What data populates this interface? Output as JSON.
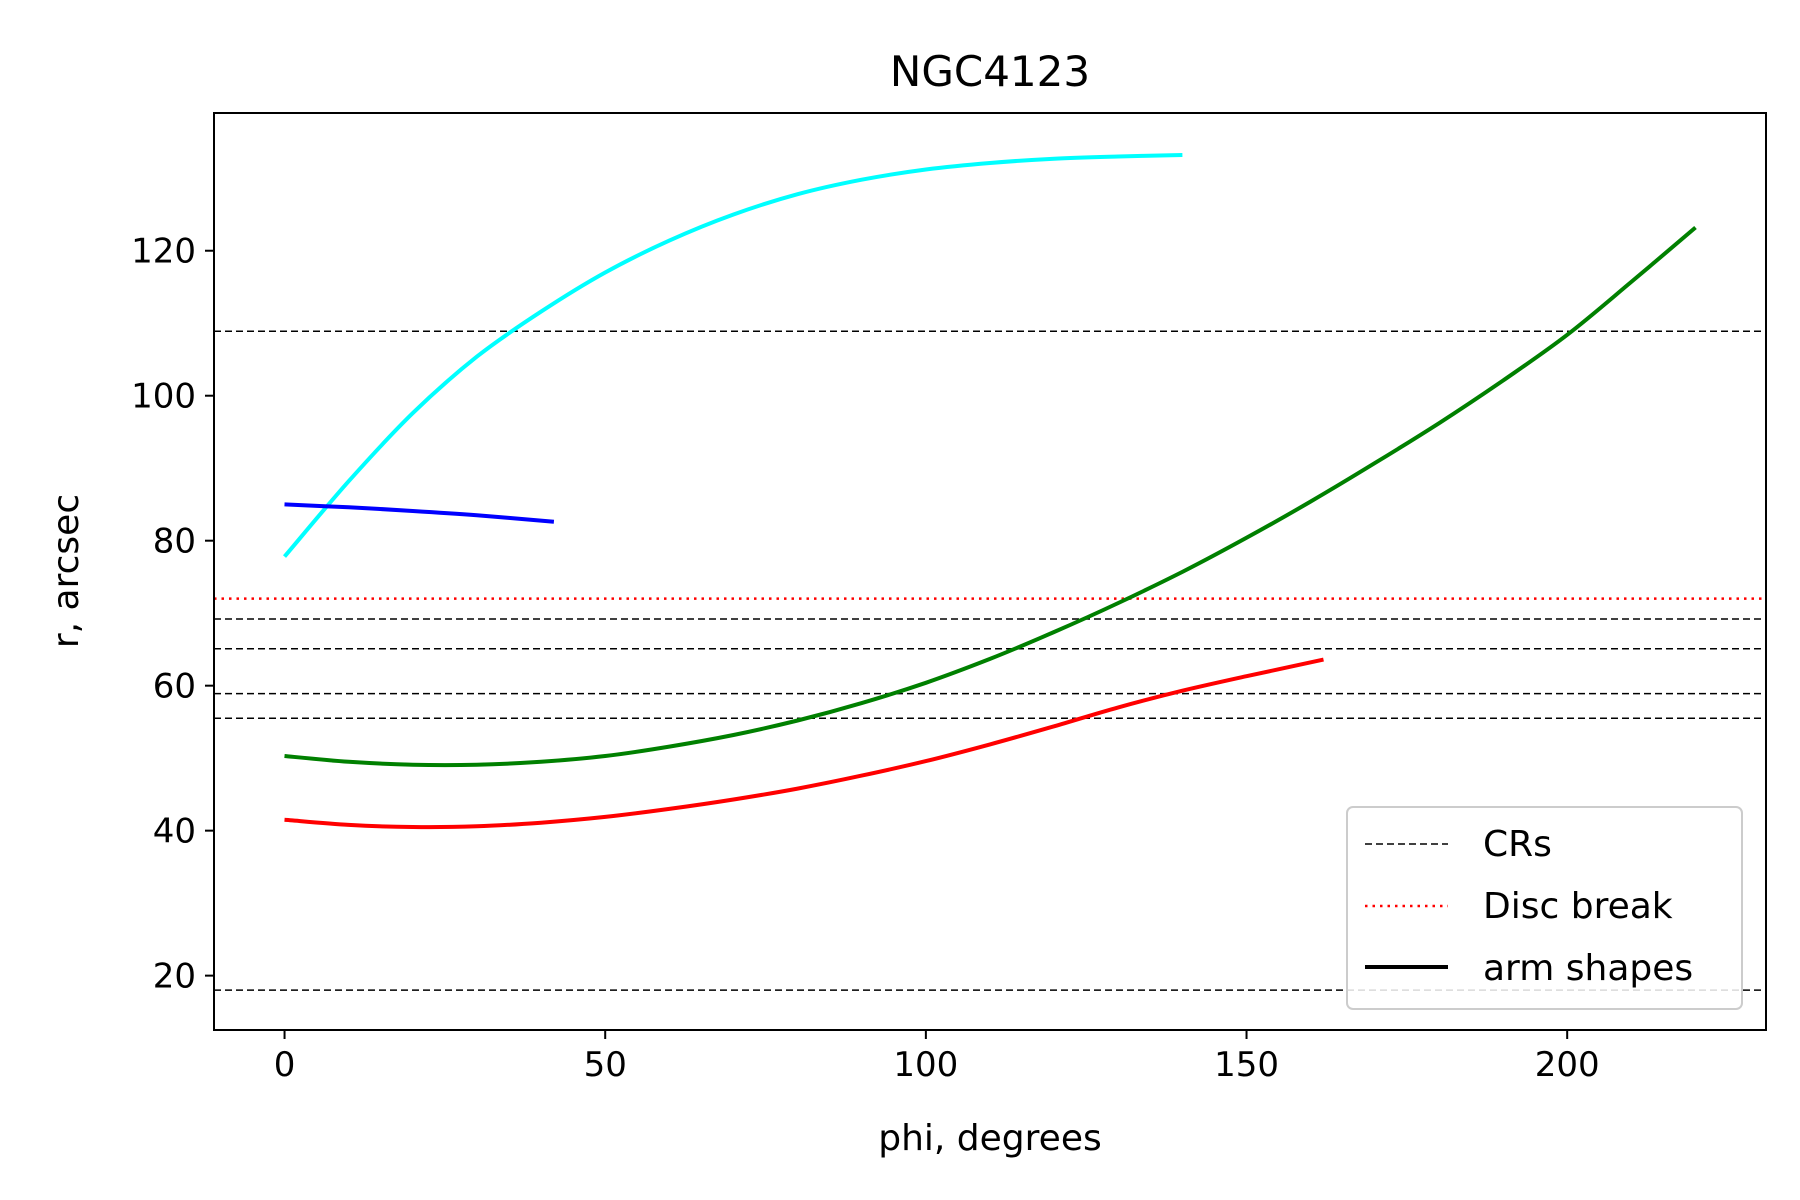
{
  "chart_data": {
    "type": "line",
    "title": "NGC4123",
    "xlabel": "phi, degrees",
    "ylabel": "r, arcsec",
    "xlim": [
      -11,
      231
    ],
    "ylim": [
      12.5,
      139
    ],
    "xticks": [
      0,
      50,
      100,
      150,
      200
    ],
    "yticks": [
      20,
      40,
      60,
      80,
      100,
      120
    ],
    "grid": false,
    "legend_position": "lower-right",
    "legend": [
      {
        "label": "CRs",
        "style": "dashed",
        "color": "#000000"
      },
      {
        "label": "Disc break",
        "style": "dotted",
        "color": "#ff0000"
      },
      {
        "label": "arm shapes",
        "style": "solid",
        "color": "#000000"
      }
    ],
    "hlines": [
      {
        "y": 18.0,
        "style": "dashed",
        "color": "#000000"
      },
      {
        "y": 55.5,
        "style": "dashed",
        "color": "#000000"
      },
      {
        "y": 58.9,
        "style": "dashed",
        "color": "#000000"
      },
      {
        "y": 65.1,
        "style": "dashed",
        "color": "#000000"
      },
      {
        "y": 69.2,
        "style": "dashed",
        "color": "#000000"
      },
      {
        "y": 108.9,
        "style": "dashed",
        "color": "#000000"
      },
      {
        "y": 72.0,
        "style": "dotted",
        "color": "#ff0000"
      }
    ],
    "series": [
      {
        "color": "#00ffff",
        "x": [
          0,
          10,
          20,
          30,
          40,
          50,
          60,
          70,
          80,
          90,
          100,
          110,
          120,
          130,
          140
        ],
        "y": [
          77.8,
          88.2,
          97.6,
          105.4,
          111.6,
          117.0,
          121.4,
          125.0,
          127.8,
          129.8,
          131.2,
          132.1,
          132.7,
          133.0,
          133.2
        ]
      },
      {
        "color": "#0000ff",
        "x": [
          0,
          10,
          20,
          30,
          42
        ],
        "y": [
          85.0,
          84.6,
          84.1,
          83.5,
          82.6
        ]
      },
      {
        "color": "#008000",
        "x": [
          0,
          10,
          20,
          30,
          40,
          50,
          60,
          70,
          80,
          90,
          100,
          110,
          120,
          130,
          140,
          150,
          160,
          170,
          180,
          190,
          200,
          210,
          220
        ],
        "y": [
          50.3,
          49.5,
          49.1,
          49.1,
          49.5,
          50.3,
          51.6,
          53.2,
          55.2,
          57.6,
          60.4,
          63.7,
          67.4,
          71.4,
          75.7,
          80.4,
          85.4,
          90.7,
          96.2,
          102.1,
          108.4,
          115.7,
          123.2
        ]
      },
      {
        "color": "#ff0000",
        "x": [
          0,
          10,
          20,
          30,
          40,
          50,
          60,
          70,
          80,
          90,
          100,
          110,
          120,
          130,
          140,
          150,
          162
        ],
        "y": [
          41.5,
          40.8,
          40.5,
          40.6,
          41.1,
          41.9,
          43.0,
          44.3,
          45.8,
          47.6,
          49.6,
          51.9,
          54.4,
          57.0,
          59.3,
          61.3,
          63.6
        ]
      }
    ]
  }
}
